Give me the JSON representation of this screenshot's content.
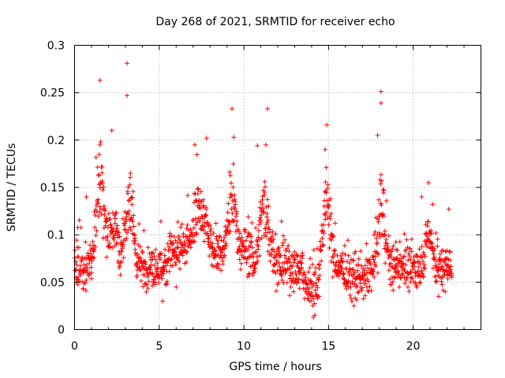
{
  "chart_data": {
    "type": "scatter",
    "title": "Day 268 of 2021, SRMTID for receiver echo",
    "xlabel": "GPS time / hours",
    "ylabel": "SRMTID / TECUs",
    "xlim": [
      0,
      24
    ],
    "ylim": [
      0,
      0.3
    ],
    "xticks": [
      0,
      5,
      10,
      15,
      20
    ],
    "xtick_labels": [
      "0",
      "5",
      "10",
      "15",
      "20"
    ],
    "yticks": [
      0,
      0.05,
      0.1,
      0.15,
      0.2,
      0.25,
      0.3
    ],
    "ytick_labels": [
      "0",
      "0.05",
      "0.1",
      "0.15",
      "0.2",
      "0.25",
      "0.3"
    ],
    "grid": true,
    "marker": "+",
    "color": "#ff0000",
    "x_range_data": [
      0,
      22.3
    ],
    "baseline_level": 0.07,
    "peaks": [
      {
        "x": 1.5,
        "y": 0.263
      },
      {
        "x": 3.1,
        "y": 0.281
      },
      {
        "x": 3.1,
        "y": 0.247
      },
      {
        "x": 9.3,
        "y": 0.233
      },
      {
        "x": 11.4,
        "y": 0.233
      },
      {
        "x": 14.9,
        "y": 0.216
      },
      {
        "x": 18.1,
        "y": 0.251
      },
      {
        "x": 18.1,
        "y": 0.239
      },
      {
        "x": 20.9,
        "y": 0.155
      }
    ],
    "sample_points": [
      {
        "x": 0.1,
        "y": 0.05
      },
      {
        "x": 0.5,
        "y": 0.043
      },
      {
        "x": 0.7,
        "y": 0.14
      },
      {
        "x": 1.0,
        "y": 0.06
      },
      {
        "x": 1.5,
        "y": 0.195
      },
      {
        "x": 2.2,
        "y": 0.21
      },
      {
        "x": 3.3,
        "y": 0.165
      },
      {
        "x": 5.2,
        "y": 0.03
      },
      {
        "x": 6.0,
        "y": 0.045
      },
      {
        "x": 7.1,
        "y": 0.195
      },
      {
        "x": 7.8,
        "y": 0.202
      },
      {
        "x": 9.4,
        "y": 0.203
      },
      {
        "x": 10.8,
        "y": 0.194
      },
      {
        "x": 11.3,
        "y": 0.195
      },
      {
        "x": 13.2,
        "y": 0.05
      },
      {
        "x": 14.1,
        "y": 0.013
      },
      {
        "x": 14.8,
        "y": 0.19
      },
      {
        "x": 16.5,
        "y": 0.025
      },
      {
        "x": 17.9,
        "y": 0.205
      },
      {
        "x": 19.0,
        "y": 0.06
      },
      {
        "x": 20.5,
        "y": 0.14
      },
      {
        "x": 21.5,
        "y": 0.035
      },
      {
        "x": 22.1,
        "y": 0.127
      }
    ]
  }
}
